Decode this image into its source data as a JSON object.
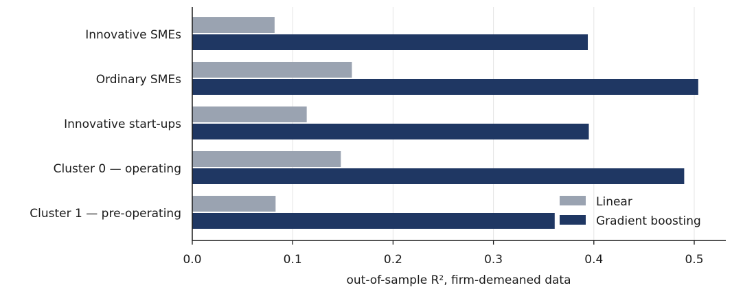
{
  "chart_data": {
    "type": "bar",
    "orientation": "horizontal",
    "categories": [
      "Innovative SMEs",
      "Ordinary SMEs",
      "Innovative start-ups",
      "Cluster 0 — operating",
      "Cluster 1 — pre-operating"
    ],
    "series": [
      {
        "name": "Linear",
        "color": "#9aa3b1",
        "values": [
          0.082,
          0.159,
          0.114,
          0.148,
          0.083
        ]
      },
      {
        "name": "Gradient boosting",
        "color": "#1f3763",
        "values": [
          0.394,
          0.504,
          0.395,
          0.49,
          0.361
        ]
      }
    ],
    "xlabel": "out-of-sample R², firm-demeaned data",
    "ylabel": "",
    "xlim": [
      0,
      0.53
    ],
    "xticks": [
      0.0,
      0.1,
      0.2,
      0.3,
      0.4,
      0.5
    ],
    "xtick_labels": [
      "0.0",
      "0.1",
      "0.2",
      "0.3",
      "0.4",
      "0.5"
    ],
    "grid": "vertical",
    "legend": "bottom-right"
  }
}
